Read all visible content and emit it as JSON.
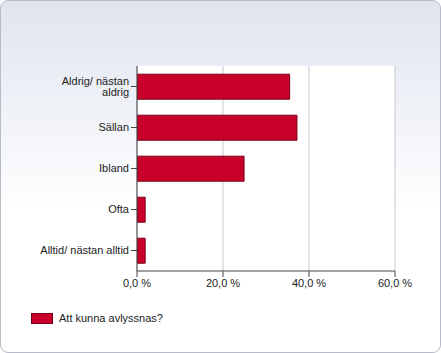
{
  "chart_data": {
    "type": "bar",
    "orientation": "horizontal",
    "categories": [
      "Aldrig/ nästan aldrig",
      "Sällan",
      "Ibland",
      "Ofta",
      "Alltid/ nästan alltid"
    ],
    "series": [
      {
        "name": "Att kunna avlyssnas?",
        "color": "#c8002a",
        "values": [
          35.5,
          37.2,
          24.9,
          1.9,
          1.9
        ]
      }
    ],
    "xlim": [
      0,
      60
    ],
    "xticks": [
      {
        "value": 0,
        "label": "0,0 %"
      },
      {
        "value": 20,
        "label": "20,0 %"
      },
      {
        "value": 40,
        "label": "40,0 %"
      },
      {
        "value": 60,
        "label": "60,0 %"
      }
    ],
    "grid": true,
    "legend": "bottom left"
  }
}
